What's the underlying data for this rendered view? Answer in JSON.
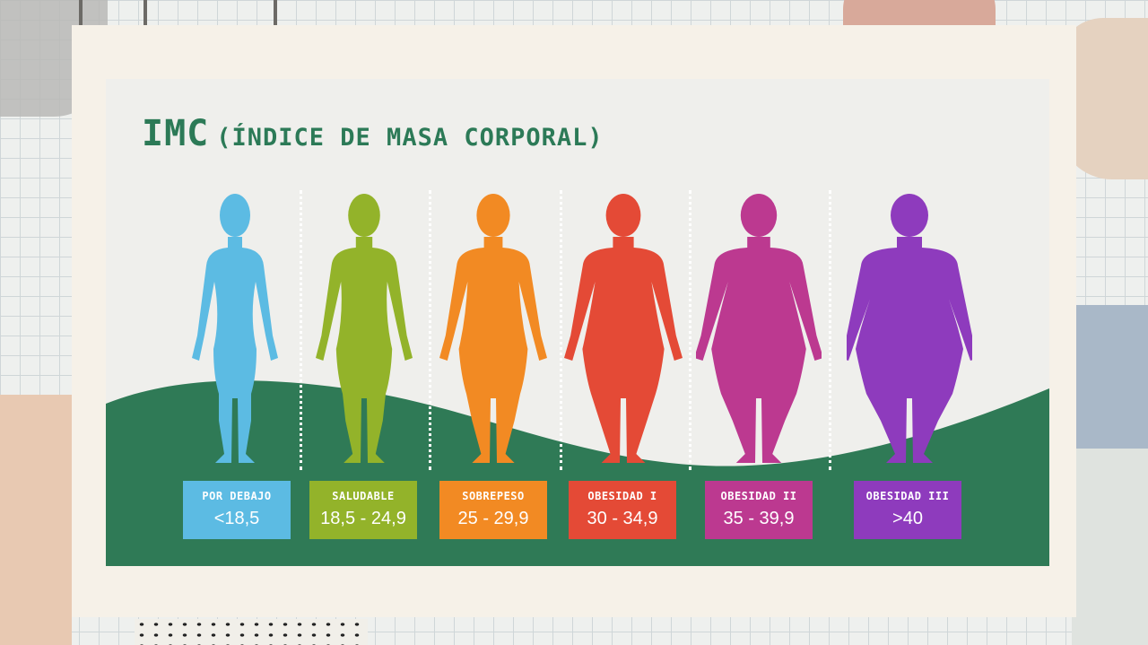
{
  "title": {
    "main": "IMC",
    "sub": "(ÍNDICE DE MASA CORPORAL)"
  },
  "colors": {
    "title": "#2c7a57",
    "hill": "#2f7a56",
    "panel": "#efefec",
    "card": "#f6f1e8"
  },
  "categories": [
    {
      "label": "POR DEBAJO",
      "range": "<18,5",
      "color": "#5cbbe3",
      "icon": "body-silhouette-icon",
      "build": 0.0
    },
    {
      "label": "SALUDABLE",
      "range": "18,5 - 24,9",
      "color": "#93b32a",
      "icon": "body-silhouette-icon",
      "build": 0.2
    },
    {
      "label": "SOBREPESO",
      "range": "25 - 29,9",
      "color": "#f28a23",
      "icon": "body-silhouette-icon",
      "build": 0.4
    },
    {
      "label": "OBESIDAD I",
      "range": "30 - 34,9",
      "color": "#e44a36",
      "icon": "body-silhouette-icon",
      "build": 0.6
    },
    {
      "label": "OBESIDAD II",
      "range": "35 - 39,9",
      "color": "#bc3990",
      "icon": "body-silhouette-icon",
      "build": 0.8
    },
    {
      "label": "OBESIDAD III",
      "range": ">40",
      "color": "#8e3bbd",
      "icon": "body-silhouette-icon",
      "build": 1.0
    }
  ]
}
